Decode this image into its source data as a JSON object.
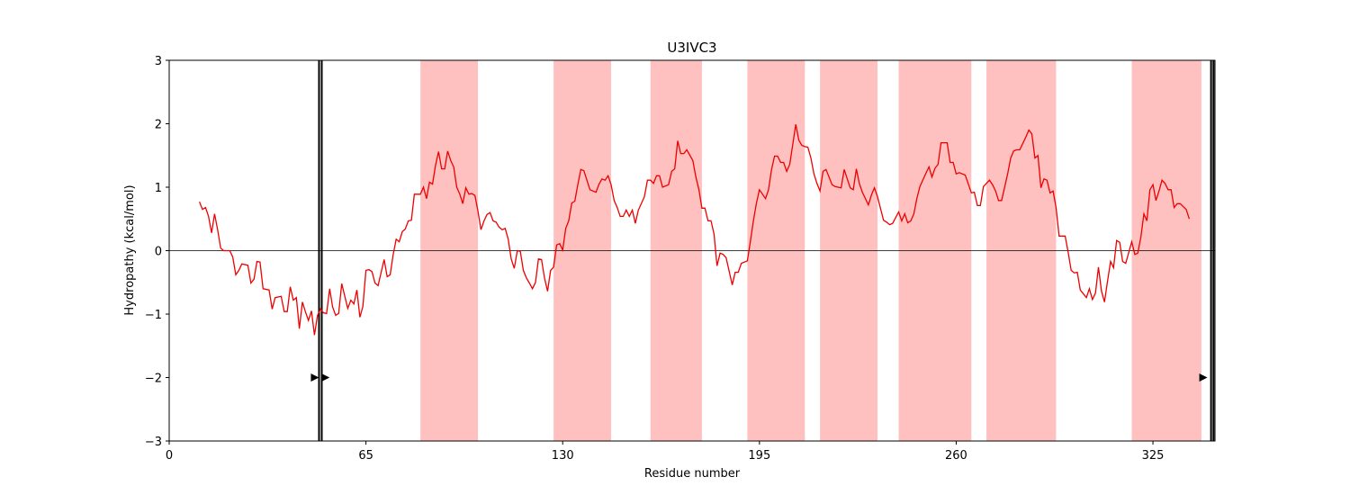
{
  "chart_data": {
    "type": "line",
    "title": "U3IVC3",
    "xlabel": "Residue number",
    "ylabel": "Hydropathy (kcal/mol)",
    "color": "#ee0000",
    "region_color": "#ffc0c0",
    "marker_color": "#000000",
    "xlim": [
      0,
      345.5
    ],
    "ylim": [
      -3,
      3
    ],
    "xticks": [
      0,
      65,
      130,
      195,
      260,
      325
    ],
    "yticks": [
      {
        "value": -3,
        "label": "−3"
      },
      {
        "value": -2,
        "label": "−2"
      },
      {
        "value": -1,
        "label": "−1"
      },
      0,
      1,
      2,
      3
    ],
    "hline": 0,
    "regions": [
      [
        83,
        102
      ],
      [
        127,
        146
      ],
      [
        159,
        176
      ],
      [
        191,
        210
      ],
      [
        215,
        234
      ],
      [
        241,
        265
      ],
      [
        270,
        293
      ],
      [
        318,
        341
      ]
    ],
    "vlines": [
      49.5,
      50.4,
      344.2,
      345
    ],
    "markers": {
      "x": [
        48,
        51.5,
        341.5
      ],
      "y": [
        -2,
        -2,
        -2
      ]
    },
    "x": [
      10,
      11,
      12,
      13,
      14,
      15,
      16,
      17,
      18,
      20,
      21,
      22,
      23,
      24,
      26,
      27,
      28,
      29,
      30,
      31,
      33,
      34,
      35,
      37,
      38,
      39,
      40,
      41,
      42,
      43,
      44,
      45,
      46,
      47,
      48,
      49,
      50,
      51,
      52,
      53,
      54,
      55,
      56,
      57,
      59,
      60,
      61,
      62,
      63,
      64,
      65,
      66,
      67,
      68,
      69,
      71,
      72,
      73,
      74,
      75,
      76,
      77,
      78,
      79,
      80,
      81,
      83,
      84,
      85,
      86,
      87,
      88,
      89,
      90,
      91,
      92,
      93,
      94,
      95,
      96,
      97,
      98,
      99,
      100,
      101,
      102,
      103,
      104,
      105,
      106,
      107,
      108,
      109,
      110,
      111,
      112,
      113,
      114,
      115,
      116,
      117,
      118,
      119,
      120,
      121,
      122,
      123,
      124,
      125,
      126,
      127,
      128,
      129,
      130,
      131,
      132,
      133,
      134,
      135,
      136,
      137,
      138,
      139,
      141,
      142,
      143,
      144,
      145,
      146,
      147,
      148,
      149,
      150,
      151,
      152,
      153,
      154,
      155,
      157,
      158,
      159,
      160,
      161,
      162,
      163,
      165,
      166,
      167,
      168,
      169,
      170,
      171,
      173,
      174,
      175,
      176,
      177,
      178,
      179,
      180,
      181,
      182,
      183,
      184,
      186,
      187,
      188,
      189,
      191,
      192,
      193,
      194,
      195,
      197,
      198,
      199,
      200,
      201,
      202,
      203,
      204,
      205,
      206,
      207,
      208,
      209,
      210,
      211,
      212,
      213,
      214,
      215,
      216,
      217,
      219,
      220,
      222,
      223,
      224,
      225,
      226,
      227,
      228,
      229,
      231,
      232,
      233,
      234,
      236,
      237,
      238,
      239,
      241,
      242,
      243,
      244,
      245,
      246,
      247,
      248,
      250,
      251,
      252,
      253,
      254,
      255,
      257,
      258,
      259,
      260,
      261,
      262,
      263,
      265,
      266,
      267,
      268,
      269,
      271,
      272,
      273,
      274,
      275,
      277,
      278,
      279,
      280,
      281,
      283,
      284,
      285,
      286,
      287,
      288,
      289,
      290,
      291,
      292,
      293,
      294,
      296,
      297,
      298,
      299,
      300,
      301,
      303,
      304,
      305,
      306,
      307,
      308,
      309,
      310,
      311,
      312,
      313,
      314,
      315,
      316,
      318,
      319,
      320,
      321,
      322,
      323,
      324,
      325,
      326,
      327,
      328,
      329,
      330,
      331,
      332,
      333,
      334,
      336,
      337
    ],
    "values": [
      0.77,
      0.65,
      0.68,
      0.54,
      0.28,
      0.58,
      0.33,
      0.04,
      0.0,
      0.0,
      -0.1,
      -0.38,
      -0.31,
      -0.21,
      -0.23,
      -0.51,
      -0.45,
      -0.17,
      -0.18,
      -0.6,
      -0.62,
      -0.92,
      -0.74,
      -0.72,
      -0.96,
      -0.96,
      -0.57,
      -0.78,
      -0.74,
      -1.23,
      -0.81,
      -0.96,
      -1.1,
      -0.95,
      -1.33,
      -1.02,
      -0.92,
      -0.98,
      -0.99,
      -0.6,
      -0.89,
      -1.02,
      -0.99,
      -0.52,
      -0.91,
      -0.78,
      -0.84,
      -0.62,
      -1.05,
      -0.88,
      -0.31,
      -0.3,
      -0.33,
      -0.51,
      -0.55,
      -0.14,
      -0.41,
      -0.38,
      -0.06,
      0.18,
      0.14,
      0.3,
      0.34,
      0.47,
      0.48,
      0.89,
      0.89,
      1.0,
      0.82,
      1.08,
      1.05,
      1.35,
      1.56,
      1.29,
      1.29,
      1.57,
      1.42,
      1.32,
      1.0,
      0.89,
      0.74,
      0.99,
      0.89,
      0.9,
      0.87,
      0.62,
      0.33,
      0.47,
      0.57,
      0.6,
      0.47,
      0.45,
      0.37,
      0.33,
      0.35,
      0.18,
      -0.13,
      -0.28,
      0.0,
      -0.01,
      -0.31,
      -0.43,
      -0.51,
      -0.6,
      -0.5,
      -0.13,
      -0.14,
      -0.43,
      -0.64,
      -0.31,
      -0.26,
      0.09,
      0.11,
      0.01,
      0.35,
      0.47,
      0.75,
      0.78,
      1.04,
      1.28,
      1.26,
      1.11,
      0.96,
      0.92,
      1.05,
      1.13,
      1.11,
      1.18,
      1.04,
      0.79,
      0.68,
      0.54,
      0.54,
      0.64,
      0.54,
      0.64,
      0.43,
      0.64,
      0.85,
      1.11,
      1.11,
      1.06,
      1.18,
      1.18,
      1.0,
      1.04,
      1.25,
      1.29,
      1.73,
      1.53,
      1.53,
      1.59,
      1.42,
      1.16,
      0.96,
      0.67,
      0.67,
      0.47,
      0.47,
      0.26,
      -0.24,
      -0.04,
      -0.06,
      -0.11,
      -0.54,
      -0.34,
      -0.34,
      -0.2,
      -0.16,
      0.14,
      0.47,
      0.75,
      0.96,
      0.82,
      0.96,
      1.28,
      1.49,
      1.49,
      1.39,
      1.39,
      1.25,
      1.36,
      1.67,
      1.99,
      1.74,
      1.66,
      1.64,
      1.63,
      1.46,
      1.21,
      1.06,
      0.94,
      1.25,
      1.28,
      1.04,
      1.01,
      0.99,
      1.28,
      1.13,
      0.99,
      0.96,
      1.29,
      1.06,
      0.92,
      0.72,
      0.88,
      0.99,
      0.85,
      0.48,
      0.45,
      0.41,
      0.43,
      0.61,
      0.47,
      0.58,
      0.44,
      0.47,
      0.58,
      0.82,
      1.01,
      1.22,
      1.32,
      1.16,
      1.3,
      1.36,
      1.7,
      1.7,
      1.39,
      1.39,
      1.21,
      1.23,
      1.21,
      1.19,
      0.91,
      0.92,
      0.71,
      0.71,
      1.01,
      1.11,
      1.04,
      0.94,
      0.79,
      0.79,
      1.21,
      1.46,
      1.57,
      1.59,
      1.59,
      1.79,
      1.9,
      1.84,
      1.46,
      1.5,
      0.99,
      1.13,
      1.11,
      0.91,
      0.94,
      0.68,
      0.23,
      0.23,
      -0.03,
      -0.31,
      -0.35,
      -0.34,
      -0.62,
      -0.74,
      -0.6,
      -0.77,
      -0.67,
      -0.26,
      -0.64,
      -0.81,
      -0.48,
      -0.17,
      -0.27,
      0.16,
      0.13,
      -0.17,
      -0.2,
      0.14,
      -0.06,
      -0.04,
      0.21,
      0.58,
      0.47,
      0.96,
      1.04,
      0.79,
      0.94,
      1.11,
      1.06,
      0.96,
      0.96,
      0.68,
      0.74,
      0.74,
      0.65,
      0.5
    ]
  }
}
